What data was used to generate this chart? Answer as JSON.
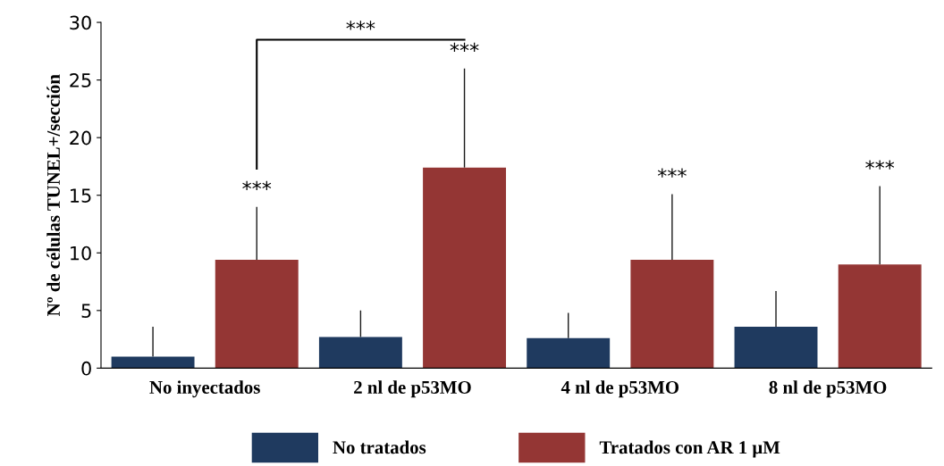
{
  "chart_data": {
    "type": "bar",
    "ylabel": "Nº de células TUNEL+/sección",
    "categories": [
      "No inyectados",
      "2 nl de p53MO",
      "4 nl de p53MO",
      "8 nl de p53MO"
    ],
    "series": [
      {
        "name": "No tratados",
        "color": "#1f3a5f",
        "values": [
          1.0,
          2.7,
          2.6,
          3.6
        ],
        "errors": [
          [
            1.0,
            3.6
          ],
          [
            2.7,
            5.0
          ],
          [
            2.6,
            4.8
          ],
          [
            3.6,
            6.7
          ]
        ]
      },
      {
        "name": "Tratados con AR 1 μM",
        "color": "#943634",
        "values": [
          9.4,
          17.4,
          9.4,
          9.0
        ],
        "errors": [
          [
            9.4,
            14.0
          ],
          [
            17.4,
            26.0
          ],
          [
            9.4,
            15.1
          ],
          [
            9.0,
            15.8
          ]
        ]
      }
    ],
    "ylim": [
      0,
      30
    ],
    "yticks": [
      0,
      5,
      10,
      15,
      20,
      25,
      30
    ],
    "grid": false,
    "legend": "bottom",
    "annotations": [
      "***",
      "***",
      "***",
      "***",
      "***"
    ]
  }
}
